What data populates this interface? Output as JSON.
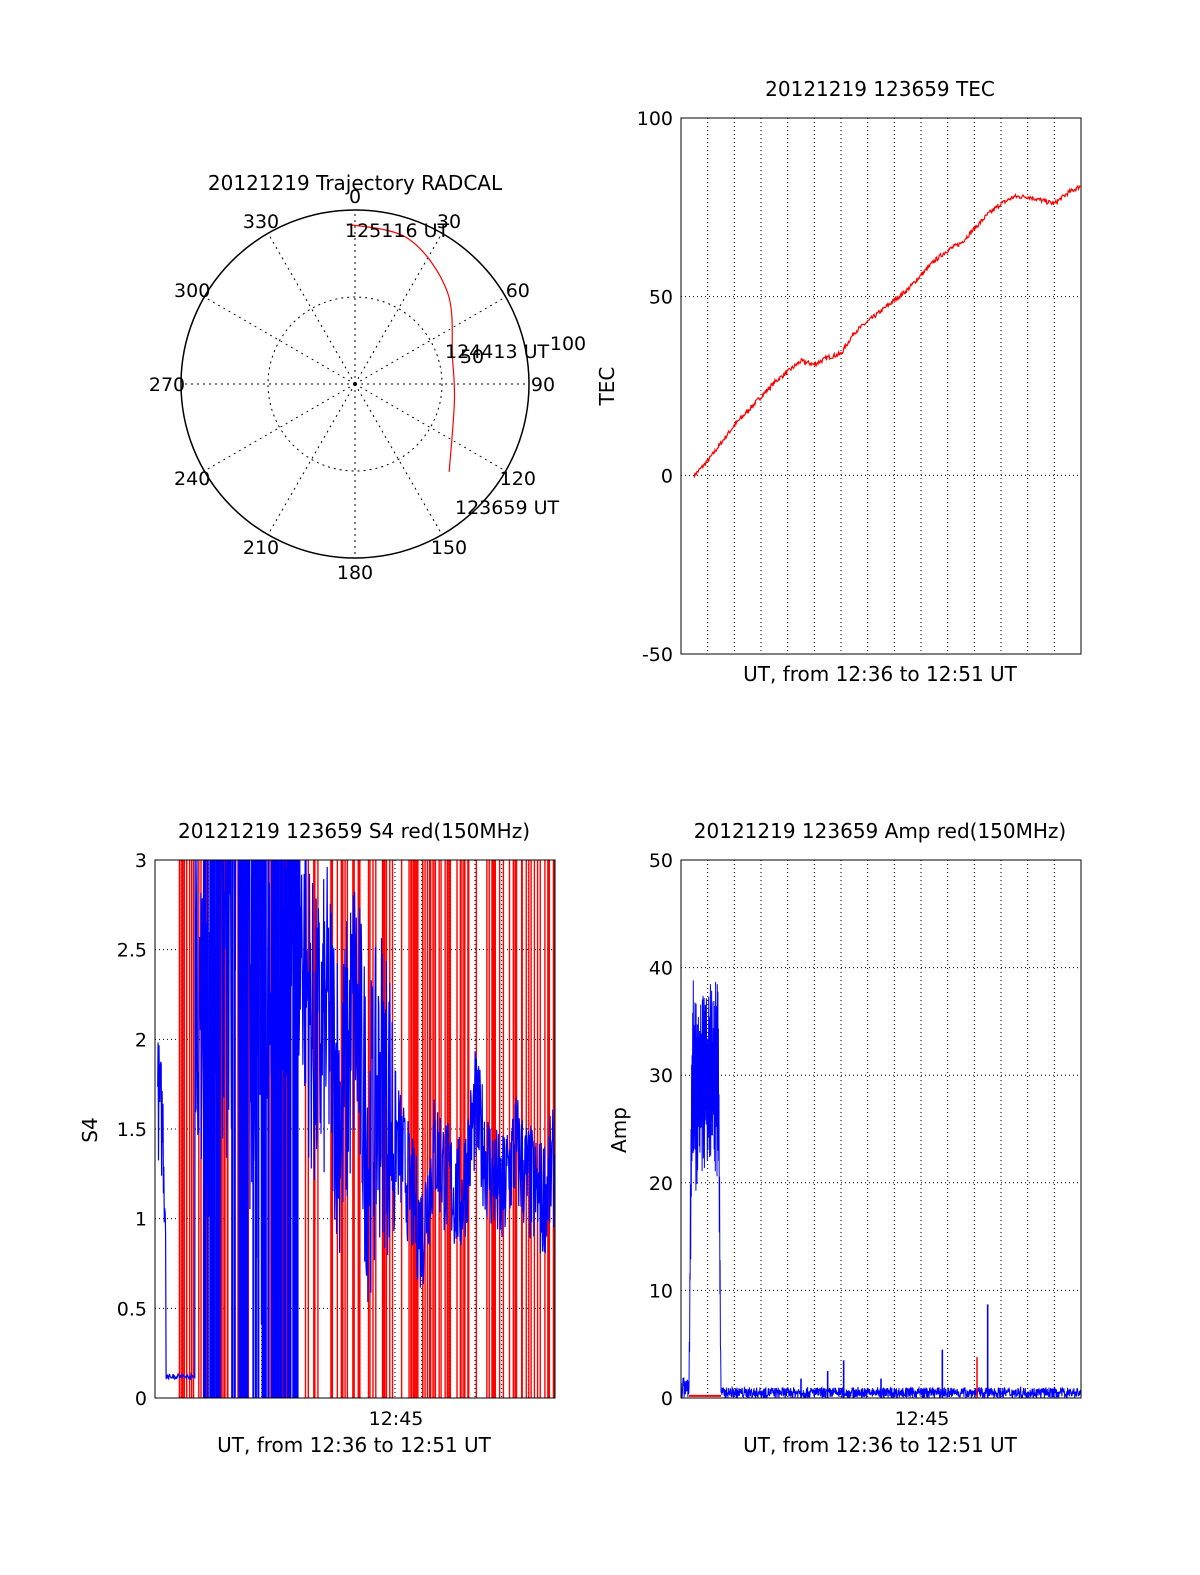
{
  "chart_data": [
    {
      "type": "polar",
      "title": "20121219 Trajectory RADCAL",
      "angle_labels": [
        "0",
        "30",
        "60",
        "90",
        "120",
        "150",
        "180",
        "210",
        "240",
        "270",
        "300",
        "330"
      ],
      "radius_labels": [
        "50",
        "100"
      ],
      "rlim": [
        0,
        100
      ],
      "grid": true,
      "time_labels": [
        "125116 UT",
        "124413 UT",
        "123659 UT"
      ],
      "trajectory": {
        "color": "#ff0000",
        "points": [
          [
            357,
            92
          ],
          [
            20,
            89
          ],
          [
            45,
            75
          ],
          [
            75,
            58
          ],
          [
            100,
            58
          ],
          [
            133,
            74
          ]
        ]
      }
    },
    {
      "type": "line",
      "title": "20121219 123659 TEC",
      "xlabel": "UT, from 12:36 to 12:51 UT",
      "ylabel": "TEC",
      "ylim": [
        -50,
        100
      ],
      "yticks": [
        "-50",
        "0",
        "50",
        "100"
      ],
      "xlim_minutes": [
        0,
        15
      ],
      "grid": true,
      "series": [
        {
          "color": "#ff0000",
          "x": [
            0,
            0.5,
            1,
            1.5,
            2,
            2.5,
            3,
            3.5,
            4,
            4.5,
            5,
            5.5,
            6,
            6.5,
            7,
            7.5,
            8,
            8.5,
            9,
            9.5,
            10,
            10.5,
            11,
            11.5,
            12,
            12.5,
            13,
            13.5,
            14,
            14.5,
            15
          ],
          "values": [
            1,
            0,
            4,
            9,
            14,
            18,
            22,
            26,
            29,
            32,
            31,
            33,
            34,
            40,
            43,
            46,
            49,
            52,
            56,
            60,
            63,
            65,
            69,
            73,
            76,
            78,
            78,
            77,
            76,
            79,
            81
          ]
        }
      ]
    },
    {
      "type": "line",
      "title": "20121219 123659 S4 red(150MHz)",
      "xlabel": "UT, from 12:36 to 12:51 UT",
      "ylabel": "S4",
      "ylim": [
        0,
        3
      ],
      "yticks": [
        "0",
        "0.5",
        "1",
        "1.5",
        "2",
        "2.5",
        "3"
      ],
      "xticks": [
        "12:45"
      ],
      "xlim_minutes": [
        0,
        15
      ],
      "grid": true,
      "series": [
        {
          "color": "#ff0000",
          "style": "dense vertical spikes spanning 0 to 3",
          "x": [
            0,
            1,
            2,
            3,
            4,
            5,
            6,
            7,
            8,
            9,
            10,
            11,
            12,
            13,
            14,
            15
          ],
          "values": [
            3,
            3,
            3,
            3,
            3,
            3,
            3,
            3,
            3,
            3,
            3,
            3,
            3,
            3,
            3,
            3
          ]
        },
        {
          "color": "#0000ff",
          "x": [
            0,
            0.3,
            0.6,
            1,
            1.5,
            2,
            2.5,
            3,
            3.5,
            4,
            4.5,
            5,
            5.5,
            6,
            6.5,
            7,
            7.5,
            8,
            8.5,
            9,
            9.5,
            10,
            10.5,
            11,
            11.5,
            12,
            12.5,
            13,
            13.5,
            14,
            14.5,
            15
          ],
          "values": [
            1.8,
            1.5,
            0.1,
            0.1,
            2.5,
            1.8,
            3,
            3,
            2.8,
            2.2,
            0.6,
            2.5,
            2.6,
            1.9,
            2.1,
            1.6,
            2.2,
            1.4,
            1.8,
            1.5,
            1.2,
            0.9,
            1.4,
            1.2,
            1.1,
            1.6,
            1.3,
            1.1,
            1.4,
            1.2,
            1.1,
            1.3
          ]
        }
      ]
    },
    {
      "type": "line",
      "title": "20121219 123659 Amp red(150MHz)",
      "xlabel": "UT, from 12:36 to 12:51 UT",
      "ylabel": "Amp",
      "ylim": [
        0,
        50
      ],
      "yticks": [
        "0",
        "10",
        "20",
        "30",
        "40",
        "50"
      ],
      "xticks": [
        "12:45"
      ],
      "xlim_minutes": [
        0,
        15
      ],
      "grid": true,
      "series": [
        {
          "color": "#0000ff",
          "envelope": [
            {
              "x": 0,
              "lo": 0,
              "hi": 2
            },
            {
              "x": 0.3,
              "lo": 0,
              "hi": 2
            },
            {
              "x": 0.4,
              "lo": 18,
              "hi": 39
            },
            {
              "x": 1.0,
              "lo": 22,
              "hi": 38
            },
            {
              "x": 1.4,
              "lo": 20,
              "hi": 40
            },
            {
              "x": 1.5,
              "lo": 0,
              "hi": 1
            },
            {
              "x": 4,
              "lo": 0,
              "hi": 1
            },
            {
              "x": 9.8,
              "lo": 0,
              "hi": 1
            },
            {
              "x": 11.5,
              "lo": 0,
              "hi": 1
            },
            {
              "x": 15,
              "lo": 0,
              "hi": 1
            }
          ],
          "spikes": [
            [
              4.5,
              1.8
            ],
            [
              5.5,
              2.5
            ],
            [
              6.1,
              3.5
            ],
            [
              7.5,
              1.8
            ],
            [
              9.8,
              4.5
            ],
            [
              11.5,
              8.7
            ]
          ]
        },
        {
          "color": "#ff0000",
          "x": [
            0.3,
            1.5,
            11.1
          ],
          "values": [
            0.2,
            0.2,
            3.8
          ]
        }
      ]
    }
  ]
}
